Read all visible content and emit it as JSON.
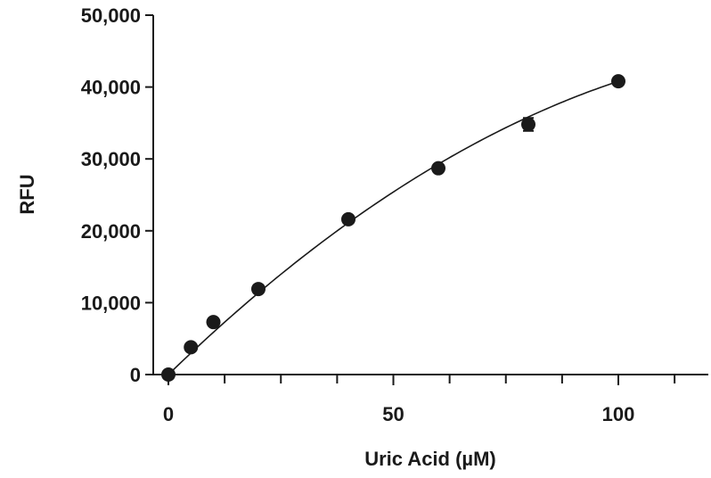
{
  "chart_data": {
    "type": "scatter",
    "title": "",
    "xlabel": "Uric Acid (µM)",
    "ylabel": "RFU",
    "xlim": [
      0,
      120
    ],
    "ylim": [
      0,
      50000
    ],
    "x_ticks": [
      0,
      50,
      100
    ],
    "x_tick_labels": [
      "0",
      "50",
      "100"
    ],
    "x_minor_ticks": [
      12.5,
      25,
      37.5,
      62.5,
      75,
      87.5,
      112.5
    ],
    "y_ticks": [
      0,
      10000,
      20000,
      30000,
      40000,
      50000
    ],
    "y_tick_labels": [
      "0",
      "10,000",
      "20,000",
      "30,000",
      "40,000",
      "50,000"
    ],
    "grid": false,
    "legend": "none",
    "marker_color": "#1a1a1a",
    "series": [
      {
        "x": [
          0,
          5,
          10,
          20,
          40,
          60,
          80,
          100
        ],
        "y": [
          0,
          3800,
          7300,
          11900,
          21600,
          28700,
          34800,
          40800
        ],
        "y_error": [
          0,
          0,
          0,
          0,
          0,
          0,
          900,
          0
        ]
      }
    ],
    "fit_curve": {
      "type": "polynomial",
      "x_range": [
        0,
        100
      ],
      "coefficients": [
        0,
        608,
        -2
      ]
    }
  }
}
